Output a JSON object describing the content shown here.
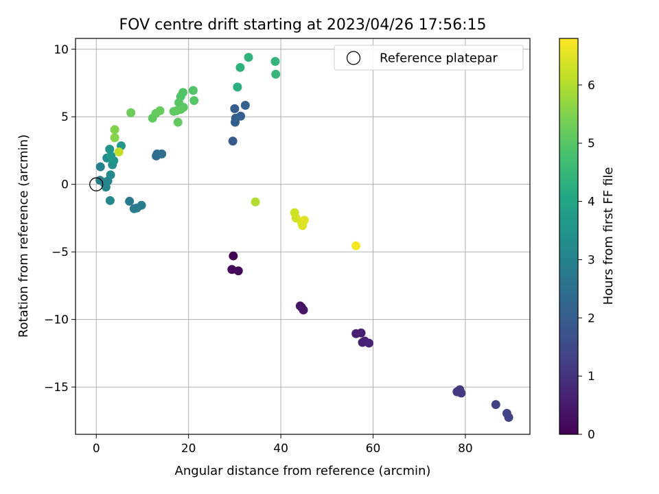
{
  "chart_data": {
    "type": "scatter",
    "title": "FOV centre drift starting at 2023/04/26 17:56:15",
    "xlabel": "Angular distance from reference (arcmin)",
    "ylabel": "Rotation from reference (arcmin)",
    "colorbar_label": "Hours from first FF file",
    "xlim": [
      -4.5,
      94
    ],
    "ylim": [
      -18.5,
      10.8
    ],
    "xticks": [
      0,
      20,
      40,
      60,
      80
    ],
    "yticks": [
      -15,
      -10,
      -5,
      0,
      5,
      10
    ],
    "colorbar_range": [
      0,
      6.8
    ],
    "colorbar_ticks": [
      0,
      1,
      2,
      3,
      4,
      5,
      6
    ],
    "colormap": "viridis",
    "grid": true,
    "legend": {
      "position": "top-right",
      "entries": [
        "Reference platepar"
      ]
    },
    "reference_point": {
      "x": 0,
      "y": 0
    },
    "points": [
      {
        "x": 29.7,
        "y": -5.3,
        "c": 0.05
      },
      {
        "x": 29.4,
        "y": -6.3,
        "c": 0.1
      },
      {
        "x": 30.8,
        "y": -6.4,
        "c": 0.15
      },
      {
        "x": 44.2,
        "y": -9.0,
        "c": 0.35
      },
      {
        "x": 44.5,
        "y": -9.1,
        "c": 0.38
      },
      {
        "x": 44.9,
        "y": -9.3,
        "c": 0.4
      },
      {
        "x": 56.3,
        "y": -11.05,
        "c": 0.6
      },
      {
        "x": 57.4,
        "y": -11.0,
        "c": 0.62
      },
      {
        "x": 57.7,
        "y": -11.7,
        "c": 0.65
      },
      {
        "x": 58.2,
        "y": -11.6,
        "c": 0.67
      },
      {
        "x": 59.1,
        "y": -11.75,
        "c": 0.7
      },
      {
        "x": 78.2,
        "y": -15.35,
        "c": 1.1
      },
      {
        "x": 78.8,
        "y": -15.2,
        "c": 1.12
      },
      {
        "x": 79.1,
        "y": -15.45,
        "c": 1.15
      },
      {
        "x": 86.6,
        "y": -16.3,
        "c": 1.3
      },
      {
        "x": 89.0,
        "y": -16.95,
        "c": 1.35
      },
      {
        "x": 89.4,
        "y": -17.25,
        "c": 1.38
      },
      {
        "x": 29.6,
        "y": 3.2,
        "c": 1.9
      },
      {
        "x": 30.0,
        "y": 5.6,
        "c": 2.0
      },
      {
        "x": 30.1,
        "y": 4.6,
        "c": 2.02
      },
      {
        "x": 30.2,
        "y": 4.9,
        "c": 2.04
      },
      {
        "x": 31.3,
        "y": 5.05,
        "c": 2.06
      },
      {
        "x": 32.3,
        "y": 5.85,
        "c": 2.1
      },
      {
        "x": 13.0,
        "y": 2.1,
        "c": 2.4
      },
      {
        "x": 13.2,
        "y": 2.25,
        "c": 2.42
      },
      {
        "x": 14.2,
        "y": 2.25,
        "c": 2.45
      },
      {
        "x": 7.2,
        "y": -1.25,
        "c": 2.75
      },
      {
        "x": 8.2,
        "y": -1.8,
        "c": 2.78
      },
      {
        "x": 8.8,
        "y": -1.75,
        "c": 2.8
      },
      {
        "x": 9.8,
        "y": -1.55,
        "c": 2.83
      },
      {
        "x": 0.8,
        "y": 0.3,
        "c": 2.9
      },
      {
        "x": 0.9,
        "y": 1.3,
        "c": 2.95
      },
      {
        "x": 1.6,
        "y": 0.15,
        "c": 3.0
      },
      {
        "x": 2.1,
        "y": -0.2,
        "c": 3.05
      },
      {
        "x": 2.5,
        "y": 0.25,
        "c": 3.1
      },
      {
        "x": 3.0,
        "y": -1.2,
        "c": 3.15
      },
      {
        "x": 3.1,
        "y": 0.7,
        "c": 3.2
      },
      {
        "x": 2.3,
        "y": 1.95,
        "c": 3.3
      },
      {
        "x": 3.5,
        "y": 1.45,
        "c": 3.35
      },
      {
        "x": 3.8,
        "y": 1.75,
        "c": 3.4
      },
      {
        "x": 2.9,
        "y": 2.6,
        "c": 3.5
      },
      {
        "x": 5.4,
        "y": 2.85,
        "c": 3.55
      },
      {
        "x": 3.2,
        "y": 2.1,
        "c": 3.6
      },
      {
        "x": 30.6,
        "y": 7.2,
        "c": 4.3
      },
      {
        "x": 31.2,
        "y": 8.65,
        "c": 4.35
      },
      {
        "x": 33.0,
        "y": 9.4,
        "c": 4.4
      },
      {
        "x": 38.8,
        "y": 9.1,
        "c": 4.45
      },
      {
        "x": 38.9,
        "y": 8.15,
        "c": 4.5
      },
      {
        "x": 18.3,
        "y": 6.5,
        "c": 4.9
      },
      {
        "x": 18.8,
        "y": 6.8,
        "c": 4.92
      },
      {
        "x": 21.0,
        "y": 6.95,
        "c": 4.95
      },
      {
        "x": 21.2,
        "y": 6.2,
        "c": 4.97
      },
      {
        "x": 17.9,
        "y": 6.05,
        "c": 5.0
      },
      {
        "x": 18.9,
        "y": 5.7,
        "c": 5.02
      },
      {
        "x": 17.4,
        "y": 5.45,
        "c": 5.05
      },
      {
        "x": 18.3,
        "y": 5.55,
        "c": 5.07
      },
      {
        "x": 16.8,
        "y": 5.4,
        "c": 5.1
      },
      {
        "x": 17.7,
        "y": 4.6,
        "c": 5.12
      },
      {
        "x": 12.2,
        "y": 4.9,
        "c": 5.15
      },
      {
        "x": 12.9,
        "y": 5.25,
        "c": 5.17
      },
      {
        "x": 13.8,
        "y": 5.45,
        "c": 5.2
      },
      {
        "x": 7.5,
        "y": 5.3,
        "c": 5.25
      },
      {
        "x": 4.0,
        "y": 4.05,
        "c": 5.5
      },
      {
        "x": 4.0,
        "y": 3.45,
        "c": 5.55
      },
      {
        "x": 34.5,
        "y": -1.3,
        "c": 6.0
      },
      {
        "x": 4.9,
        "y": 2.4,
        "c": 6.15
      },
      {
        "x": 43.0,
        "y": -2.1,
        "c": 6.3
      },
      {
        "x": 43.3,
        "y": -2.5,
        "c": 6.35
      },
      {
        "x": 44.5,
        "y": -2.8,
        "c": 6.4
      },
      {
        "x": 44.7,
        "y": -3.05,
        "c": 6.45
      },
      {
        "x": 45.1,
        "y": -2.65,
        "c": 6.5
      },
      {
        "x": 56.3,
        "y": -4.55,
        "c": 6.75
      }
    ]
  }
}
